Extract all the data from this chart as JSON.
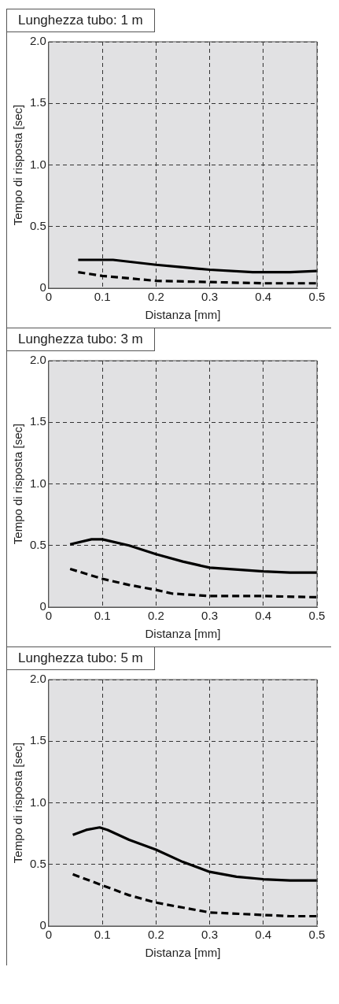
{
  "chart_data": [
    {
      "type": "line",
      "title": "Lunghezza tubo: 1 m",
      "xlabel": "Distanza [mm]",
      "ylabel": "Tempo di risposta [sec]",
      "xlim": [
        0,
        0.5
      ],
      "xticks": [
        0,
        0.1,
        0.2,
        0.3,
        0.4,
        0.5
      ],
      "ylim": [
        0,
        2
      ],
      "yticks": [
        {
          "value": 0,
          "label": "0"
        },
        {
          "value": 0.5,
          "label": "0.5"
        },
        {
          "value": 1,
          "label": "1.0"
        },
        {
          "value": 1.5,
          "label": "1.5"
        },
        {
          "value": 2,
          "label": "2.0"
        }
      ],
      "grid": true,
      "series": [
        {
          "color": "#000000",
          "line_style": "solid",
          "x": [
            0.055,
            0.1,
            0.12,
            0.2,
            0.25,
            0.3,
            0.38,
            0.45,
            0.5
          ],
          "values": [
            0.23,
            0.23,
            0.23,
            0.19,
            0.17,
            0.15,
            0.13,
            0.13,
            0.14
          ]
        },
        {
          "color": "#000000",
          "line_style": "dashed",
          "x": [
            0.055,
            0.1,
            0.15,
            0.2,
            0.3,
            0.4,
            0.5
          ],
          "values": [
            0.13,
            0.1,
            0.08,
            0.06,
            0.05,
            0.04,
            0.04
          ]
        }
      ]
    },
    {
      "type": "line",
      "title": "Lunghezza tubo: 3 m",
      "xlabel": "Distanza [mm]",
      "ylabel": "Tempo di risposta [sec]",
      "xlim": [
        0,
        0.5
      ],
      "xticks": [
        0,
        0.1,
        0.2,
        0.3,
        0.4,
        0.5
      ],
      "ylim": [
        0,
        2
      ],
      "yticks": [
        {
          "value": 0,
          "label": "0"
        },
        {
          "value": 0.5,
          "label": "0.5"
        },
        {
          "value": 1,
          "label": "1.0"
        },
        {
          "value": 1.5,
          "label": "1.5"
        },
        {
          "value": 2,
          "label": "2.0"
        }
      ],
      "grid": true,
      "series": [
        {
          "color": "#000000",
          "line_style": "solid",
          "x": [
            0.04,
            0.08,
            0.1,
            0.15,
            0.2,
            0.25,
            0.3,
            0.4,
            0.45,
            0.5
          ],
          "values": [
            0.51,
            0.55,
            0.55,
            0.5,
            0.43,
            0.37,
            0.32,
            0.29,
            0.28,
            0.28
          ]
        },
        {
          "color": "#000000",
          "line_style": "dashed",
          "x": [
            0.04,
            0.1,
            0.15,
            0.2,
            0.23,
            0.3,
            0.4,
            0.5
          ],
          "values": [
            0.31,
            0.23,
            0.18,
            0.14,
            0.11,
            0.09,
            0.09,
            0.08
          ]
        }
      ]
    },
    {
      "type": "line",
      "title": "Lunghezza tubo: 5 m",
      "xlabel": "Distanza [mm]",
      "ylabel": "Tempo di risposta [sec]",
      "xlim": [
        0,
        0.5
      ],
      "xticks": [
        0,
        0.1,
        0.2,
        0.3,
        0.4,
        0.5
      ],
      "ylim": [
        0,
        2
      ],
      "yticks": [
        {
          "value": 0,
          "label": "0"
        },
        {
          "value": 0.5,
          "label": "0.5"
        },
        {
          "value": 1,
          "label": "1.0"
        },
        {
          "value": 1.5,
          "label": "1.5"
        },
        {
          "value": 2,
          "label": "2.0"
        }
      ],
      "grid": true,
      "series": [
        {
          "color": "#000000",
          "line_style": "solid",
          "x": [
            0.045,
            0.07,
            0.095,
            0.11,
            0.15,
            0.2,
            0.25,
            0.3,
            0.35,
            0.4,
            0.45,
            0.5
          ],
          "values": [
            0.74,
            0.78,
            0.8,
            0.78,
            0.7,
            0.62,
            0.52,
            0.44,
            0.4,
            0.38,
            0.37,
            0.37
          ]
        },
        {
          "color": "#000000",
          "line_style": "dashed",
          "x": [
            0.045,
            0.1,
            0.15,
            0.2,
            0.25,
            0.3,
            0.4,
            0.45,
            0.5
          ],
          "values": [
            0.42,
            0.33,
            0.25,
            0.19,
            0.15,
            0.11,
            0.09,
            0.08,
            0.08
          ]
        }
      ]
    }
  ]
}
